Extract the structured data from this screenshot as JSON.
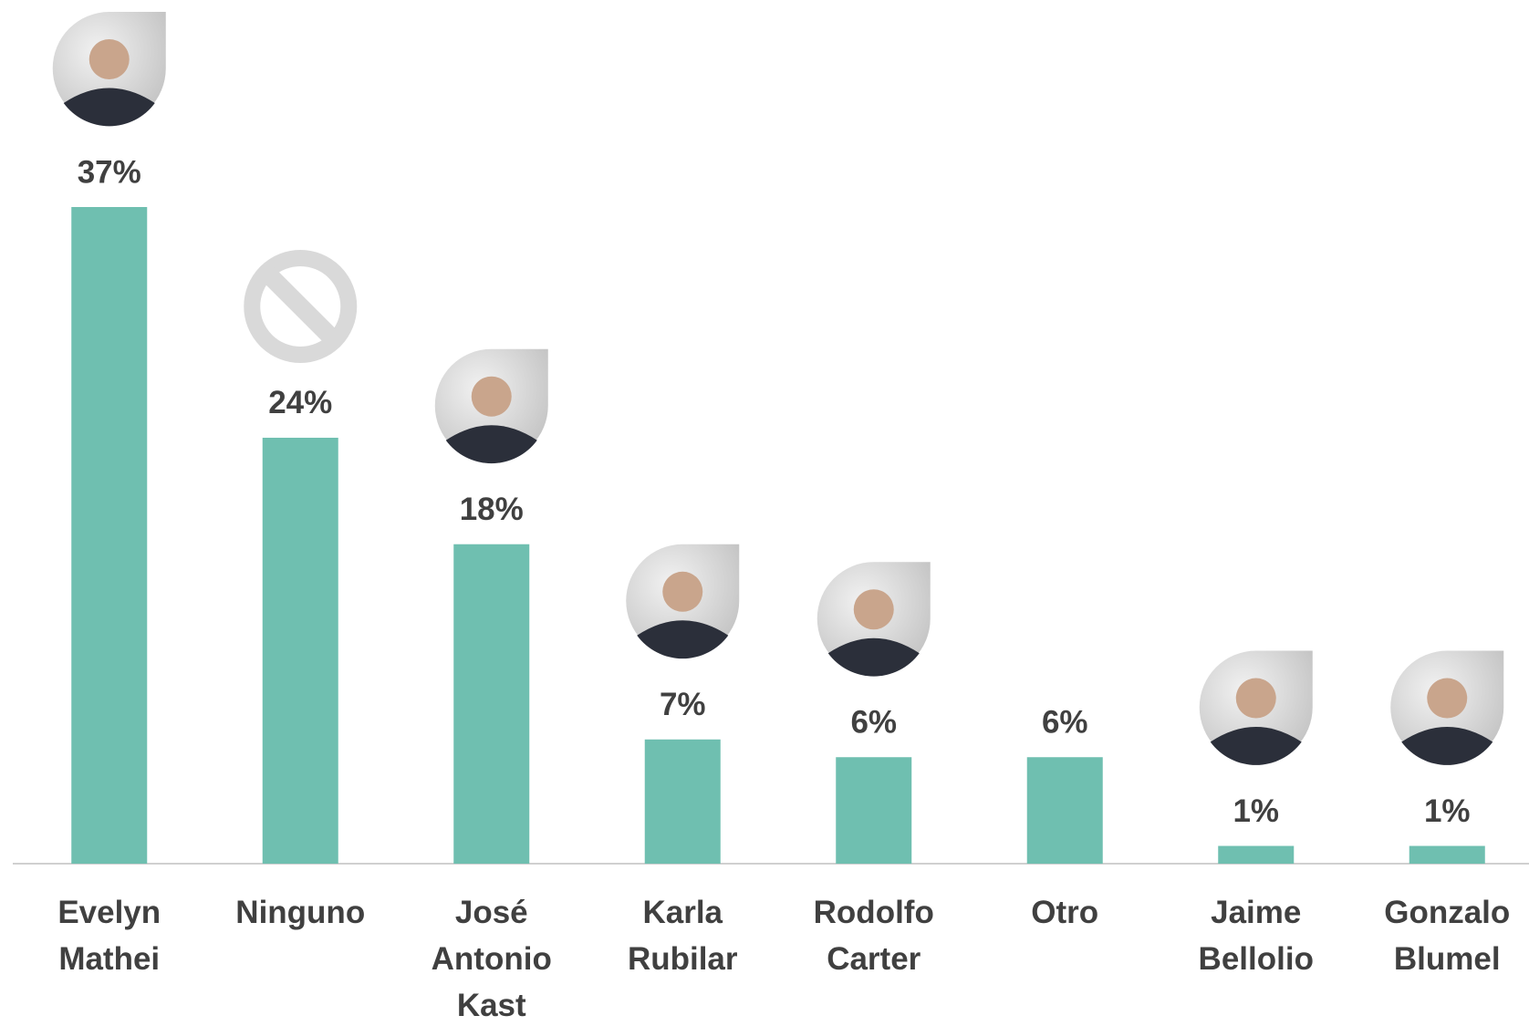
{
  "chart_data": {
    "type": "bar",
    "categories": [
      "Evelyn Mathei",
      "Ninguno",
      "José Antonio Kast",
      "Karla Rubilar",
      "Rodolfo Carter",
      "Otro",
      "Jaime Bellolio",
      "Gonzalo Blumel"
    ],
    "values": [
      37,
      24,
      18,
      7,
      6,
      6,
      1,
      1
    ],
    "value_labels": [
      "37%",
      "24%",
      "18%",
      "7%",
      "6%",
      "6%",
      "1%",
      "1%"
    ],
    "color": "#6fbfb0"
  }
}
